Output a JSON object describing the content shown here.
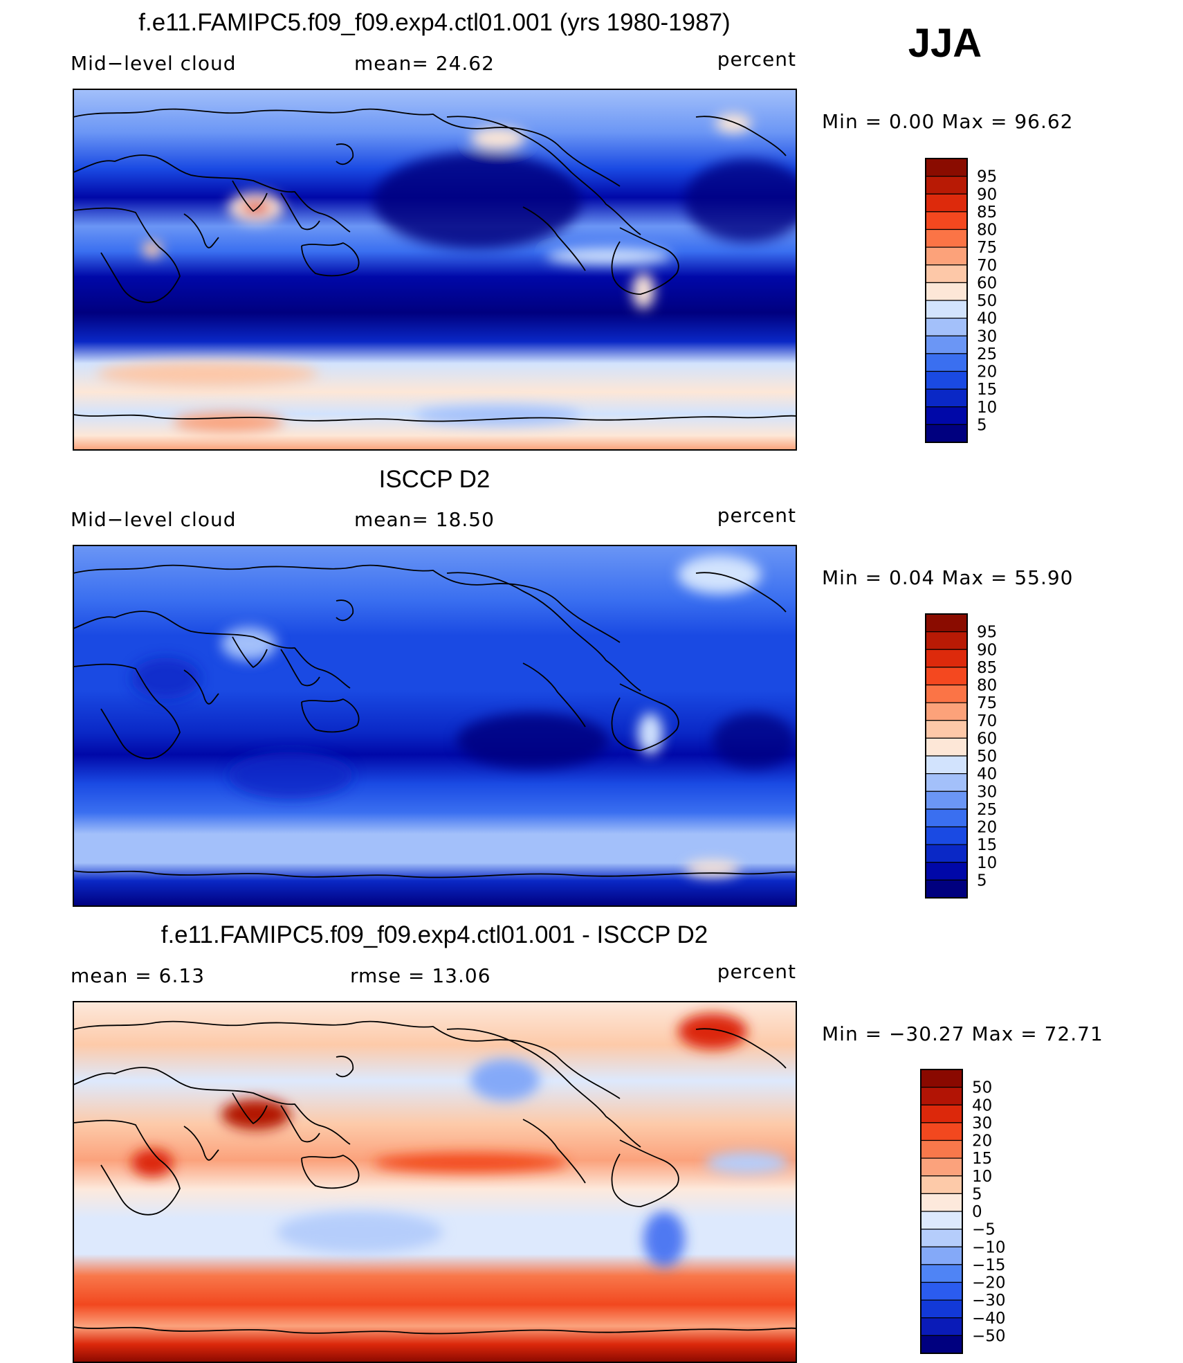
{
  "season": "JJA",
  "colors": {
    "blue_ramp": [
      "#00007f",
      "#0008a8",
      "#0a28c6",
      "#1a4ae3",
      "#3a6ff0",
      "#6b96f5",
      "#a3c0fa",
      "#d2e3fd"
    ],
    "red_ramp": [
      "#fde7d7",
      "#fdc8a8",
      "#fca27a",
      "#fb7446",
      "#f4481f",
      "#dd2a0c",
      "#b81a05",
      "#8a0c00"
    ],
    "diff_ramp": [
      "#00007f",
      "#0a1bb8",
      "#1239d8",
      "#2b5cef",
      "#4f84f5",
      "#84a9f8",
      "#b5cdfb",
      "#dde9fd",
      "#fde9dc",
      "#fdcaa9",
      "#fba27c",
      "#f8784b",
      "#f2481f",
      "#dc280b",
      "#b21405",
      "#8a0900"
    ]
  },
  "panels": [
    {
      "id": "model",
      "title": "f.e11.FAMIPC5.f09_f09.exp4.ctl01.001 (yrs 1980-1987)",
      "left_label": "Mid−level cloud",
      "mid_label": "mean=   24.62",
      "units": "percent",
      "minmax": "Min  =      0.00  Max  =    96.62",
      "colorbar_labels": [
        "95",
        "90",
        "85",
        "80",
        "75",
        "70",
        "60",
        "50",
        "40",
        "30",
        "25",
        "20",
        "15",
        "10",
        "5"
      ],
      "colorbar_colors": [
        "#8a0c00",
        "#b81a05",
        "#dd2a0c",
        "#f4481f",
        "#fb7446",
        "#fca27a",
        "#fdc8a8",
        "#fde7d7",
        "#d2e3fd",
        "#a3c0fa",
        "#6b96f5",
        "#3a6ff0",
        "#1a4ae3",
        "#0a28c6",
        "#0008a8",
        "#00007f"
      ]
    },
    {
      "id": "obs",
      "title": "ISCCP D2",
      "left_label": "Mid−level cloud",
      "mid_label": "mean=   18.50",
      "units": "percent",
      "minmax": "Min  =      0.04  Max  =    55.90",
      "colorbar_labels": [
        "95",
        "90",
        "85",
        "80",
        "75",
        "70",
        "60",
        "50",
        "40",
        "30",
        "25",
        "20",
        "15",
        "10",
        "5"
      ],
      "colorbar_colors": [
        "#8a0c00",
        "#b81a05",
        "#dd2a0c",
        "#f4481f",
        "#fb7446",
        "#fca27a",
        "#fdc8a8",
        "#fde7d7",
        "#d2e3fd",
        "#a3c0fa",
        "#6b96f5",
        "#3a6ff0",
        "#1a4ae3",
        "#0a28c6",
        "#0008a8",
        "#00007f"
      ]
    },
    {
      "id": "diff",
      "title": "f.e11.FAMIPC5.f09_f09.exp4.ctl01.001 - ISCCP D2",
      "left_label": "mean  =      6.13",
      "mid_label": "rmse  =     13.06",
      "units": "percent",
      "minmax": "Min  = −30.27  Max  =    72.71",
      "colorbar_labels": [
        "50",
        "40",
        "30",
        "20",
        "15",
        "10",
        "5",
        "0",
        "−5",
        "−10",
        "−15",
        "−20",
        "−30",
        "−40",
        "−50"
      ],
      "colorbar_colors": [
        "#8a0900",
        "#b21405",
        "#dc280b",
        "#f2481f",
        "#f8784b",
        "#fba27c",
        "#fdcaa9",
        "#fde9dc",
        "#dde9fd",
        "#b5cdfb",
        "#84a9f8",
        "#4f84f5",
        "#2b5cef",
        "#1239d8",
        "#0a1bb8",
        "#00007f"
      ]
    }
  ]
}
